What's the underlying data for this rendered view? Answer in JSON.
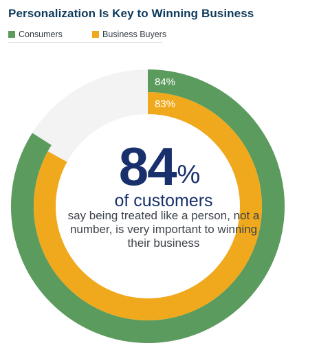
{
  "title": "Personalization Is Key to Winning Business",
  "colors": {
    "title": "#0e3a5c",
    "consumers": "#5b9b5e",
    "business_buyers": "#f0a91d",
    "track": "#f3f3f3",
    "accent_text": "#18306c"
  },
  "chart_data": {
    "type": "pie",
    "variant": "concentric-rings",
    "legend": [
      "Consumers",
      "Business Buyers"
    ],
    "legend_position": "top-left",
    "series": [
      {
        "name": "Consumers",
        "value": 84,
        "label": "84%",
        "ring": "outer"
      },
      {
        "name": "Business Buyers",
        "value": 83,
        "label": "83%",
        "ring": "inner"
      }
    ],
    "max": 100
  },
  "headline": {
    "value": "84",
    "unit": "%",
    "label": "of customers",
    "caption": "say being treated like a person, not a number, is very important to winning their business"
  }
}
